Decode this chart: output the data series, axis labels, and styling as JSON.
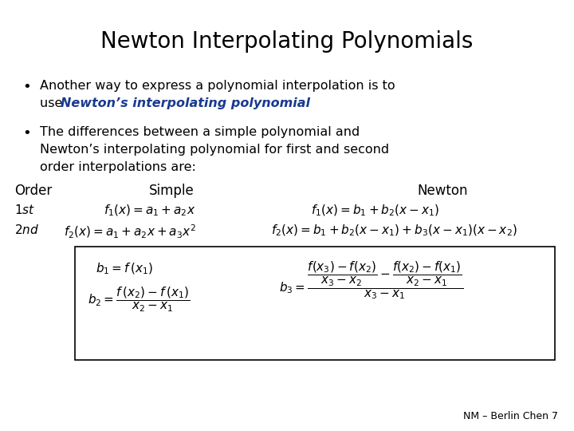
{
  "title": "Newton Interpolating Polynomials",
  "background_color": "#ffffff",
  "title_fontsize": 20,
  "body_fontsize": 11.5,
  "math_fontsize": 11,
  "bullet1_line1": "Another way to express a polynomial interpolation is to",
  "bullet1_line2_plain": "use ",
  "bullet1_line2_italic_blue": "Newton’s interpolating polynomial",
  "bullet2_line1": "The differences between a simple polynomial and",
  "bullet2_line2": "Newton’s interpolating polynomial for first and second",
  "bullet2_line3": "order interpolations are:",
  "footer": "NM – Berlin Chen 7",
  "box_edge_color": "#000000",
  "blue_color": "#1a3a8f"
}
